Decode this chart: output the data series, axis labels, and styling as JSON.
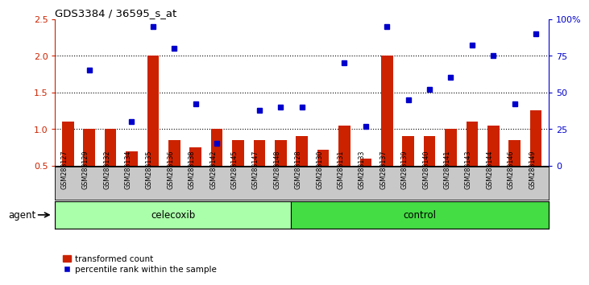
{
  "title": "GDS3384 / 36595_s_at",
  "samples": [
    "GSM283127",
    "GSM283129",
    "GSM283132",
    "GSM283134",
    "GSM283135",
    "GSM283136",
    "GSM283138",
    "GSM283142",
    "GSM283145",
    "GSM283147",
    "GSM283148",
    "GSM283128",
    "GSM283130",
    "GSM283131",
    "GSM283133",
    "GSM283137",
    "GSM283139",
    "GSM283140",
    "GSM283141",
    "GSM283143",
    "GSM283144",
    "GSM283146",
    "GSM283149"
  ],
  "bar_values": [
    1.1,
    1.0,
    1.0,
    0.7,
    2.0,
    0.85,
    0.75,
    1.0,
    0.85,
    0.85,
    0.85,
    0.9,
    0.72,
    1.05,
    0.6,
    2.0,
    0.9,
    0.9,
    1.0,
    1.1,
    1.05,
    0.85,
    1.25
  ],
  "dot_values": [
    null,
    65,
    null,
    30,
    95,
    80,
    42,
    15,
    null,
    38,
    40,
    40,
    null,
    70,
    27,
    95,
    45,
    52,
    60,
    82,
    75,
    42,
    90
  ],
  "celecoxib_count": 11,
  "control_count": 12,
  "ylim_left": [
    0.5,
    2.5
  ],
  "ylim_right": [
    0,
    100
  ],
  "yticks_left": [
    0.5,
    1.0,
    1.5,
    2.0,
    2.5
  ],
  "yticks_right": [
    0,
    25,
    50,
    75,
    100
  ],
  "ytick_labels_right": [
    "0",
    "25",
    "50",
    "75",
    "100%"
  ],
  "bar_color": "#CC2200",
  "dot_color": "#0000CC",
  "hline_values": [
    1.0,
    1.5,
    2.0
  ],
  "celecoxib_color": "#AAFFAA",
  "control_color": "#44DD44",
  "xlabel_row_bg": "#C8C8C8",
  "agent_label": "agent",
  "celecoxib_label": "celecoxib",
  "control_label": "control",
  "legend_bar": "transformed count",
  "legend_dot": "percentile rank within the sample"
}
